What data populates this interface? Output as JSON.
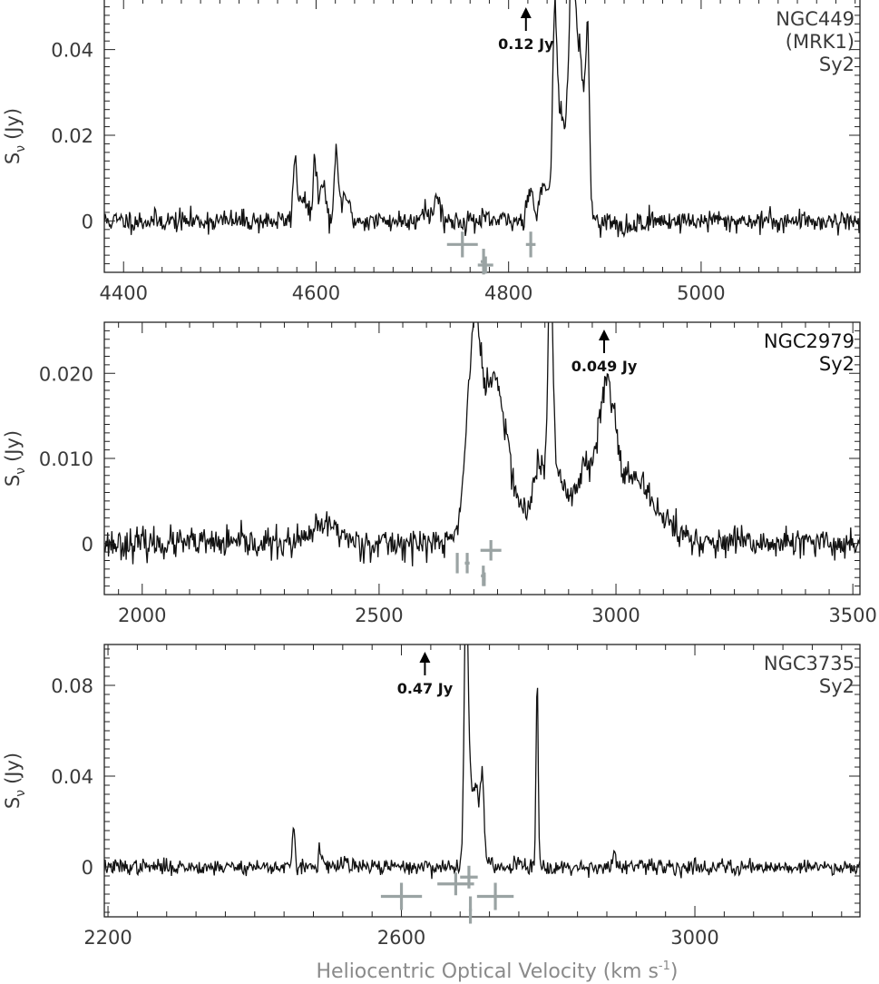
{
  "colors": {
    "spectrum": "#111111",
    "markers": "#9aa3a3",
    "axis": "#222222"
  },
  "xlabel": "Heliocentric Optical Velocity (km s",
  "xlabel_sup": "-1",
  "xlabel_end": ")",
  "chart_data": [
    {
      "type": "line",
      "ylabel": "S",
      "ylabel_sub": "ν",
      "ylabel_unit": "(Jy)",
      "xlim": [
        4380,
        5165
      ],
      "ylim": [
        -0.012,
        0.052
      ],
      "xticks": [
        4400,
        4600,
        4800,
        5000
      ],
      "xtick_labels": [
        "4400",
        "4600",
        "4800",
        "5000"
      ],
      "yticks": [
        0,
        0.02,
        0.04
      ],
      "ytick_labels": [
        "0",
        "0.02",
        "0.04"
      ],
      "name_lines": [
        "NGC449",
        "(MRK1)",
        "Sy2"
      ],
      "annotation": {
        "text": "0.12 Jy",
        "x": 4818
      },
      "noise": 0.0013,
      "seed": 11,
      "peaks": [
        [
          4578,
          0.0135,
          2
        ],
        [
          4586,
          0.006,
          4
        ],
        [
          4599,
          0.014,
          2
        ],
        [
          4607,
          0.0085,
          3
        ],
        [
          4621,
          0.015,
          2
        ],
        [
          4630,
          0.006,
          4
        ],
        [
          4726,
          0.006,
          3
        ],
        [
          4712,
          0.003,
          4
        ],
        [
          4822,
          0.008,
          3
        ],
        [
          4836,
          0.007,
          4
        ],
        [
          4848,
          0.032,
          2
        ],
        [
          4852,
          0.016,
          6
        ],
        [
          4866,
          0.05,
          3
        ],
        [
          4874,
          0.035,
          4
        ],
        [
          4882,
          0.041,
          2
        ],
        [
          4860,
          0.012,
          10
        ]
      ],
      "baseline_curve": [
        [
          4920,
          -0.002,
          8
        ]
      ],
      "markers": [
        {
          "x": 4752,
          "y": -0.0055,
          "xerr": 16,
          "yerr": 0.003
        },
        {
          "x": 4774,
          "y": -0.0095,
          "xerr": 3,
          "yerr": 0.003
        },
        {
          "x": 4776,
          "y": -0.0103,
          "xerr": 8,
          "yerr": 0.002
        },
        {
          "x": 4823,
          "y": -0.0055,
          "xerr": 5,
          "yerr": 0.003
        }
      ]
    },
    {
      "type": "line",
      "ylabel": "S",
      "ylabel_sub": "ν",
      "ylabel_unit": "(Jy)",
      "xlim": [
        1920,
        3515
      ],
      "ylim": [
        -0.006,
        0.026
      ],
      "xticks": [
        2000,
        2500,
        3000,
        3500
      ],
      "xtick_labels": [
        "2000",
        "2500",
        "3000",
        "3500"
      ],
      "yticks": [
        0,
        0.01,
        0.02
      ],
      "ytick_labels": [
        "0",
        "0.010",
        "0.020"
      ],
      "name_lines": [
        "NGC2979",
        "Sy2"
      ],
      "annotation": {
        "text": "0.049 Jy",
        "x": 2975
      },
      "noise": 0.0009,
      "seed": 23,
      "peaks": [
        [
          2390,
          0.0022,
          28
        ],
        [
          2700,
          0.0195,
          14
        ],
        [
          2745,
          0.0125,
          20
        ],
        [
          2720,
          0.007,
          30
        ],
        [
          2780,
          0.005,
          25
        ],
        [
          2840,
          0.009,
          15
        ],
        [
          2862,
          0.028,
          5
        ],
        [
          2880,
          0.007,
          14
        ],
        [
          2935,
          0.008,
          25
        ],
        [
          2982,
          0.0125,
          16
        ],
        [
          3010,
          0.006,
          40
        ],
        [
          3070,
          0.0035,
          45
        ]
      ],
      "baseline_curve": [],
      "markers": [
        {
          "x": 2665,
          "y": -0.0023,
          "xerr": 2,
          "yerr": 0.0012
        },
        {
          "x": 2686,
          "y": -0.0023,
          "xerr": 5,
          "yerr": 0.0012
        },
        {
          "x": 2720,
          "y": -0.0038,
          "xerr": 5,
          "yerr": 0.0012
        },
        {
          "x": 2722,
          "y": -0.0042,
          "xerr": 3,
          "yerr": 0.0008
        },
        {
          "x": 2736,
          "y": -0.0008,
          "xerr": 22,
          "yerr": 0.0012
        }
      ]
    },
    {
      "type": "line",
      "ylabel": "S",
      "ylabel_sub": "ν",
      "ylabel_unit": "(Jy)",
      "xlim": [
        2195,
        3225
      ],
      "ylim": [
        -0.022,
        0.098
      ],
      "xticks": [
        2200,
        2600,
        3000
      ],
      "xtick_labels": [
        "2200",
        "2600",
        "3000"
      ],
      "yticks": [
        0,
        0.04,
        0.08
      ],
      "ytick_labels": [
        "0",
        "0.04",
        "0.08"
      ],
      "name_lines": [
        "NGC3735",
        "Sy2"
      ],
      "annotation": {
        "text": "0.47 Jy",
        "x": 2632
      },
      "noise": 0.0017,
      "seed": 37,
      "peaks": [
        [
          2453,
          0.019,
          1.5
        ],
        [
          2489,
          0.008,
          2
        ],
        [
          2524,
          0.003,
          3
        ],
        [
          2688,
          0.11,
          2.5
        ],
        [
          2693,
          0.04,
          4
        ],
        [
          2702,
          0.025,
          3
        ],
        [
          2710,
          0.033,
          2.5
        ],
        [
          2706,
          0.01,
          6
        ],
        [
          2760,
          0.003,
          5
        ],
        [
          2785,
          0.083,
          1.5
        ],
        [
          2890,
          0.008,
          1.5
        ]
      ],
      "baseline_curve": [],
      "markers": [
        {
          "x": 2600,
          "y": -0.013,
          "xerr": 28,
          "yerr": 0.006
        },
        {
          "x": 2674,
          "y": -0.0075,
          "xerr": 25,
          "yerr": 0.005
        },
        {
          "x": 2692,
          "y": -0.0045,
          "xerr": 12,
          "yerr": 0.005
        },
        {
          "x": 2694,
          "y": -0.019,
          "xerr": 2,
          "yerr": 0.006
        },
        {
          "x": 2728,
          "y": -0.013,
          "xerr": 25,
          "yerr": 0.006
        }
      ]
    }
  ]
}
